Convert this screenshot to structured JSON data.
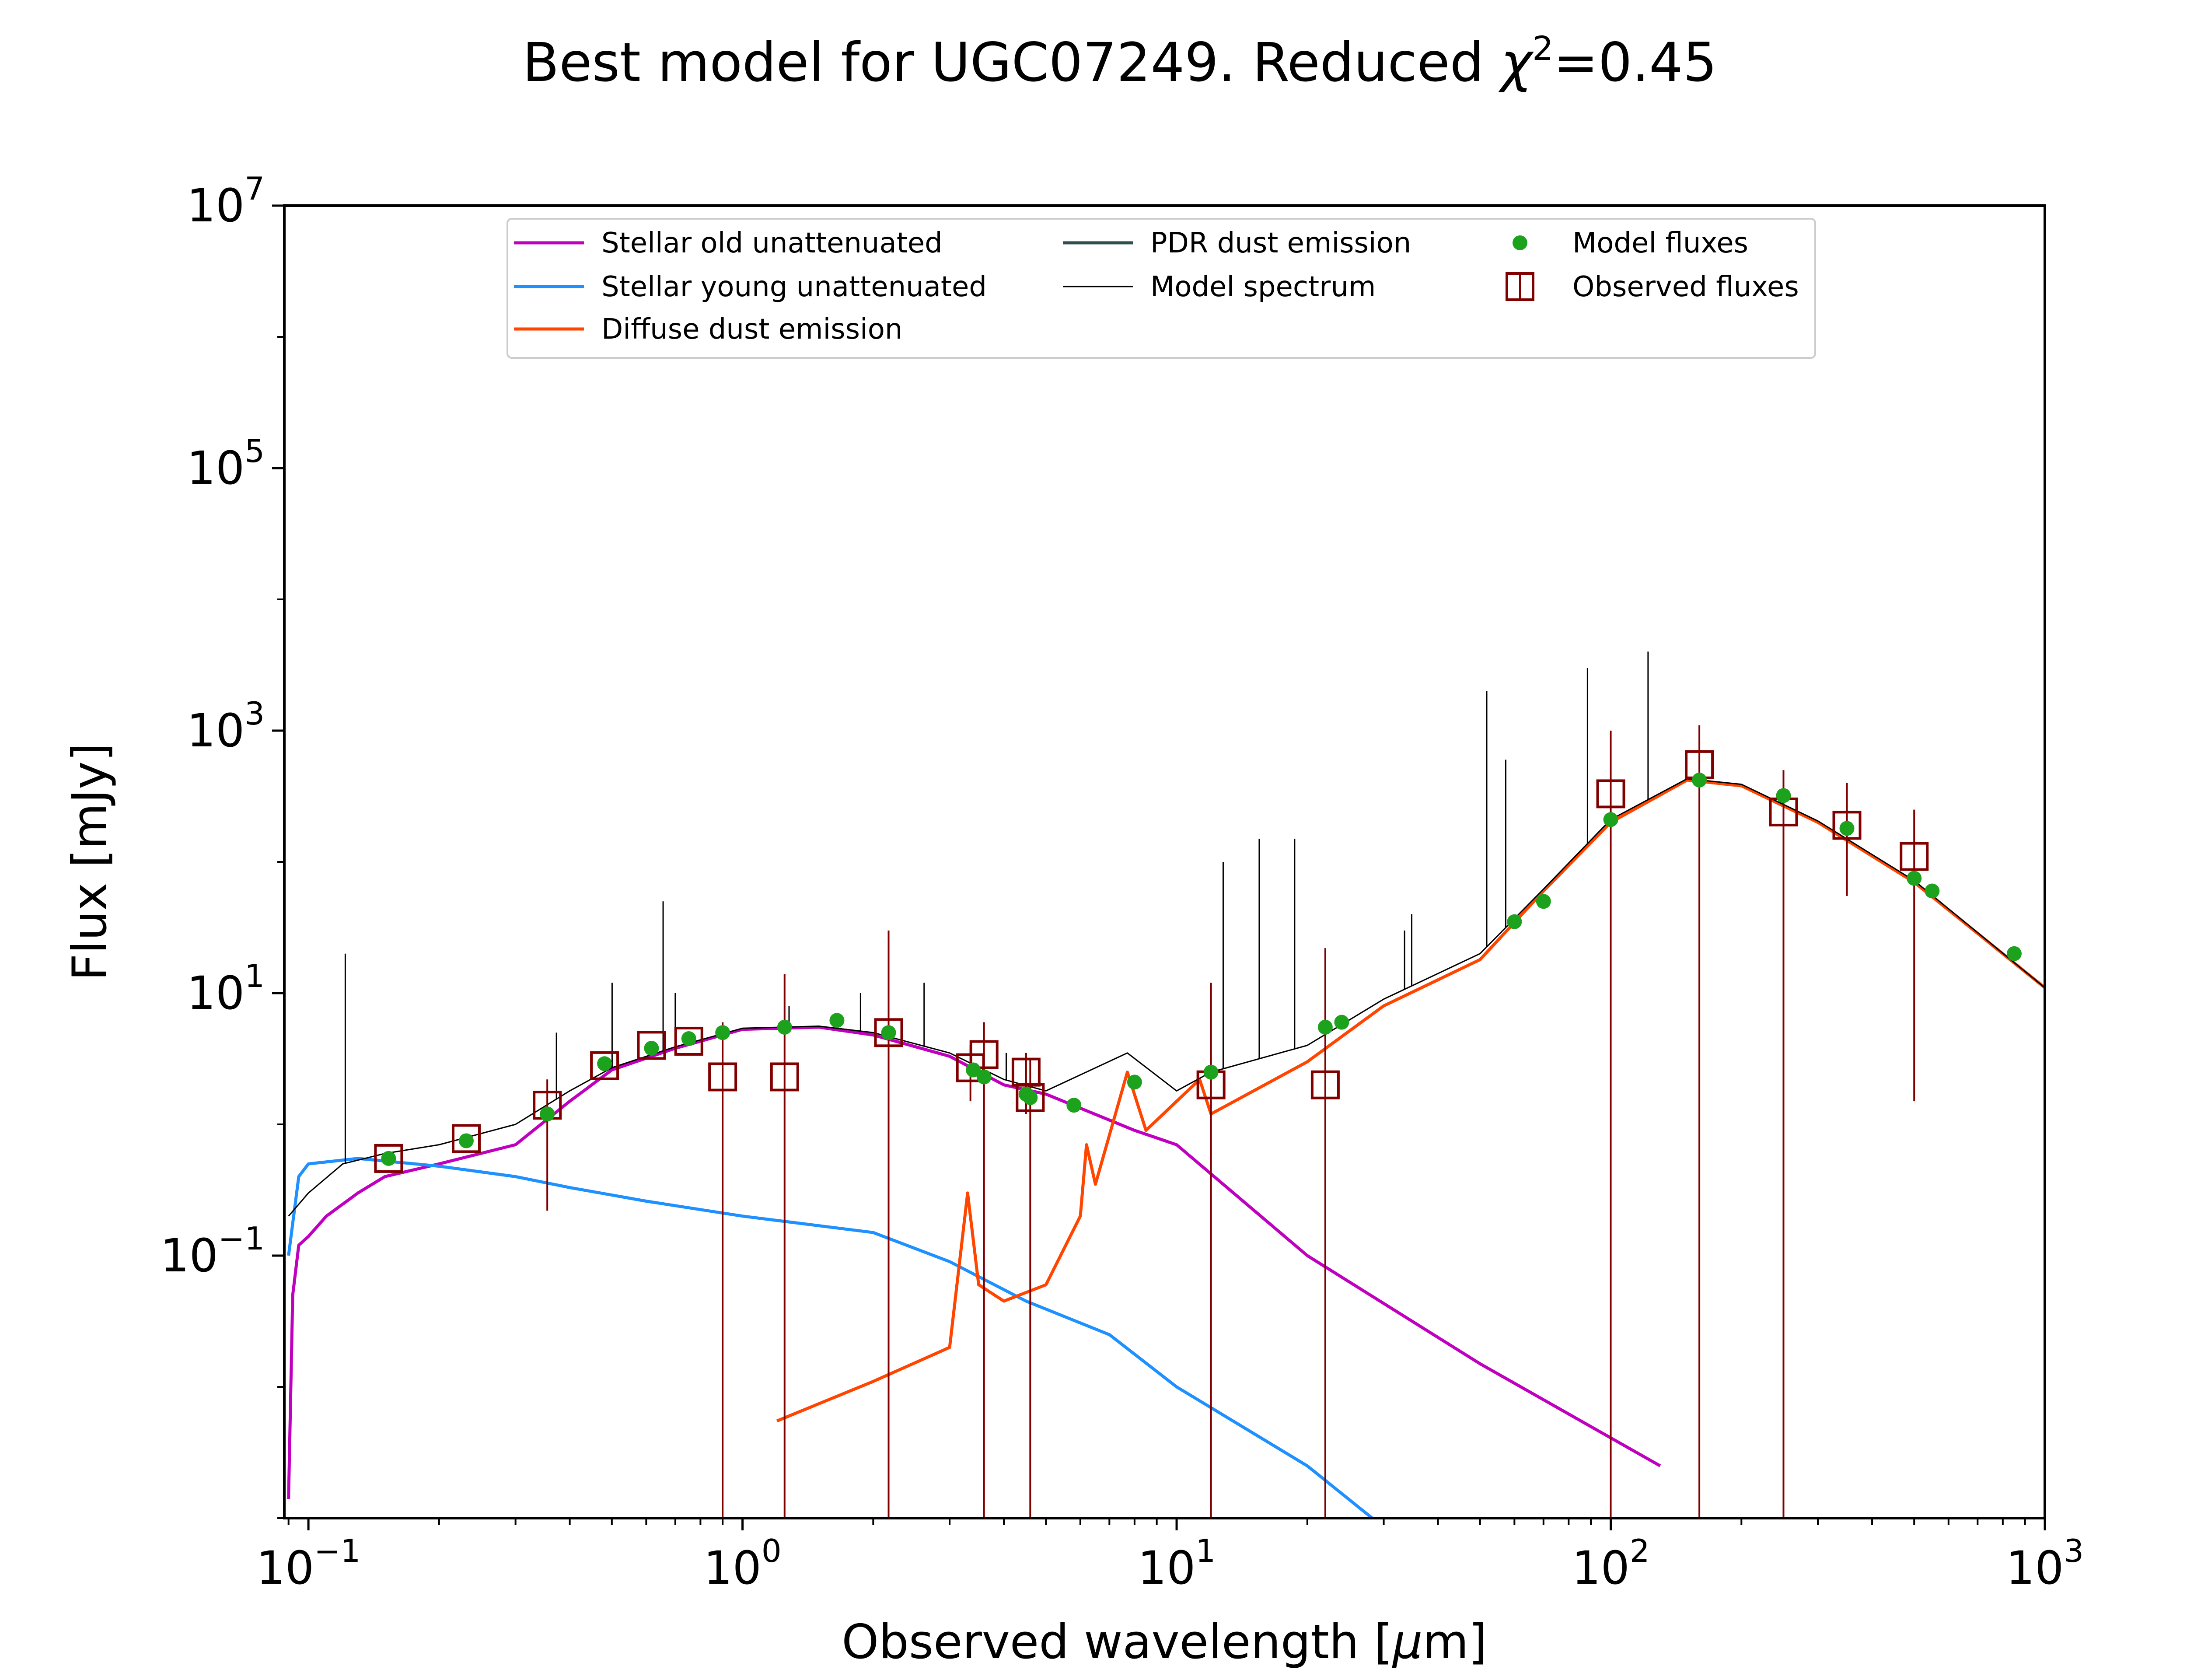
{
  "chart_data": {
    "type": "line",
    "title": "Best model for UGC07249. Reduced χ²=0.45",
    "title_parts": {
      "prefix": "Best model for UGC07249. Reduced ",
      "chi": "χ",
      "sup": "2",
      "suffix": "=0.45"
    },
    "xlabel": "Observed wavelength [μm]",
    "xlabel_parts": {
      "prefix": "Observed wavelength [",
      "mu": "μ",
      "suffix": "m]"
    },
    "ylabel": "Flux [mJy]",
    "xscale": "log",
    "yscale": "log",
    "xlim": [
      0.088,
      1000
    ],
    "ylim": [
      0.001,
      10000000
    ],
    "xticks": [
      {
        "base": "10",
        "exp": "−1",
        "value": 0.1
      },
      {
        "base": "10",
        "exp": "0",
        "value": 1
      },
      {
        "base": "10",
        "exp": "1",
        "value": 10
      },
      {
        "base": "10",
        "exp": "2",
        "value": 100
      },
      {
        "base": "10",
        "exp": "3",
        "value": 1000
      }
    ],
    "yticks": [
      {
        "base": "10",
        "exp": "−1",
        "value": 0.1
      },
      {
        "base": "10",
        "exp": "1",
        "value": 10
      },
      {
        "base": "10",
        "exp": "3",
        "value": 1000
      },
      {
        "base": "10",
        "exp": "5",
        "value": 100000
      },
      {
        "base": "10",
        "exp": "7",
        "value": 10000000
      }
    ],
    "grid": false,
    "legend_position": "top-center",
    "legend": [
      {
        "label": "Stellar old unattenuated",
        "color": "#bf00bf",
        "kind": "line"
      },
      {
        "label": "Stellar young unattenuated",
        "color": "#1e90ff",
        "kind": "line"
      },
      {
        "label": "Diffuse dust emission",
        "color": "#ff4500",
        "kind": "line"
      },
      {
        "label": "PDR dust emission",
        "color": "#2f4f4f",
        "kind": "line"
      },
      {
        "label": "Model spectrum",
        "color": "#000000",
        "kind": "thinline"
      },
      {
        "label": "Model fluxes",
        "color": "#1ca21c",
        "kind": "dot"
      },
      {
        "label": "Observed fluxes",
        "color": "#800000",
        "kind": "square"
      }
    ],
    "series": [
      {
        "name": "Stellar old unattenuated",
        "color": "#bf00bf",
        "points": [
          [
            0.09,
            0.0014
          ],
          [
            0.092,
            0.05
          ],
          [
            0.095,
            0.12
          ],
          [
            0.1,
            0.14
          ],
          [
            0.11,
            0.2
          ],
          [
            0.13,
            0.3
          ],
          [
            0.15,
            0.4
          ],
          [
            0.2,
            0.5
          ],
          [
            0.3,
            0.7
          ],
          [
            0.4,
            1.5
          ],
          [
            0.5,
            2.6
          ],
          [
            0.7,
            3.8
          ],
          [
            1.0,
            5.3
          ],
          [
            1.5,
            5.5
          ],
          [
            2.0,
            4.8
          ],
          [
            3.0,
            3.3
          ],
          [
            4.0,
            2.0
          ],
          [
            5.0,
            1.7
          ],
          [
            8.0,
            0.9
          ],
          [
            10.0,
            0.7
          ],
          [
            20.0,
            0.1
          ],
          [
            50.0,
            0.015
          ],
          [
            130.0,
            0.0025
          ]
        ]
      },
      {
        "name": "Stellar young unattenuated",
        "color": "#1e90ff",
        "points": [
          [
            0.09,
            0.1
          ],
          [
            0.095,
            0.4
          ],
          [
            0.1,
            0.5
          ],
          [
            0.13,
            0.55
          ],
          [
            0.2,
            0.48
          ],
          [
            0.3,
            0.4
          ],
          [
            0.4,
            0.33
          ],
          [
            0.6,
            0.26
          ],
          [
            1.0,
            0.2
          ],
          [
            2.0,
            0.15
          ],
          [
            3.0,
            0.09
          ],
          [
            4.5,
            0.045
          ],
          [
            7.0,
            0.025
          ],
          [
            10.0,
            0.01
          ],
          [
            20.0,
            0.0025
          ],
          [
            30.0,
            0.00085
          ]
        ]
      },
      {
        "name": "Diffuse dust emission",
        "color": "#ff4500",
        "points": [
          [
            1.2,
            0.0055
          ],
          [
            2.0,
            0.011
          ],
          [
            3.0,
            0.02
          ],
          [
            3.3,
            0.3
          ],
          [
            3.5,
            0.06
          ],
          [
            4.0,
            0.045
          ],
          [
            5.0,
            0.06
          ],
          [
            6.0,
            0.2
          ],
          [
            6.2,
            0.7
          ],
          [
            6.5,
            0.35
          ],
          [
            7.7,
            2.5
          ],
          [
            8.5,
            0.9
          ],
          [
            11.3,
            2.2
          ],
          [
            12.0,
            1.2
          ],
          [
            20.0,
            3.0
          ],
          [
            30.0,
            8.0
          ],
          [
            50.0,
            18.0
          ],
          [
            70.0,
            60.0
          ],
          [
            100.0,
            200.0
          ],
          [
            150.0,
            420.0
          ],
          [
            200.0,
            380.0
          ],
          [
            300.0,
            200.0
          ],
          [
            500.0,
            70.0
          ],
          [
            1000.0,
            11.0
          ]
        ]
      },
      {
        "name": "Model spectrum",
        "color": "#000000",
        "points": [
          [
            0.09,
            0.2
          ],
          [
            0.1,
            0.3
          ],
          [
            0.12,
            0.5
          ],
          [
            0.15,
            0.6
          ],
          [
            0.2,
            0.7
          ],
          [
            0.3,
            1.0
          ],
          [
            0.4,
            1.8
          ],
          [
            0.5,
            2.7
          ],
          [
            0.7,
            3.9
          ],
          [
            1.0,
            5.4
          ],
          [
            1.5,
            5.6
          ],
          [
            2.0,
            5.0
          ],
          [
            3.0,
            3.5
          ],
          [
            4.0,
            2.2
          ],
          [
            5.0,
            1.8
          ],
          [
            7.7,
            3.5
          ],
          [
            10.0,
            1.8
          ],
          [
            12.0,
            2.5
          ],
          [
            20.0,
            4.0
          ],
          [
            30.0,
            9.0
          ],
          [
            50.0,
            20.0
          ],
          [
            70.0,
            62.0
          ],
          [
            100.0,
            210.0
          ],
          [
            150.0,
            430.0
          ],
          [
            200.0,
            390.0
          ],
          [
            300.0,
            205.0
          ],
          [
            500.0,
            72.0
          ],
          [
            1000.0,
            11.0
          ]
        ]
      }
    ],
    "spectral_lines": [
      [
        0.1216,
        20
      ],
      [
        0.3727,
        5
      ],
      [
        0.5007,
        12
      ],
      [
        0.6563,
        50
      ],
      [
        0.7,
        10
      ],
      [
        1.28,
        8
      ],
      [
        1.87,
        10
      ],
      [
        2.62,
        12
      ],
      [
        4.05,
        3.5
      ],
      [
        12.8,
        100
      ],
      [
        15.5,
        150
      ],
      [
        18.7,
        150
      ],
      [
        33.5,
        30
      ],
      [
        34.8,
        40
      ],
      [
        51.8,
        2000
      ],
      [
        57.3,
        600
      ],
      [
        88.4,
        3000
      ],
      [
        121.9,
        4000
      ]
    ],
    "model_fluxes": [
      [
        0.153,
        0.55
      ],
      [
        0.231,
        0.75
      ],
      [
        0.355,
        1.2
      ],
      [
        0.481,
        2.9
      ],
      [
        0.617,
        3.8
      ],
      [
        0.752,
        4.5
      ],
      [
        0.9,
        5.0
      ],
      [
        1.25,
        5.5
      ],
      [
        1.65,
        6.2
      ],
      [
        2.17,
        5.0
      ],
      [
        3.4,
        2.6
      ],
      [
        3.6,
        2.3
      ],
      [
        4.5,
        1.7
      ],
      [
        4.6,
        1.6
      ],
      [
        5.8,
        1.4
      ],
      [
        8.0,
        2.1
      ],
      [
        12.0,
        2.5
      ],
      [
        22.0,
        5.5
      ],
      [
        24.0,
        6.0
      ],
      [
        60.0,
        35.0
      ],
      [
        70.0,
        50.0
      ],
      [
        100.0,
        210.0
      ],
      [
        160.0,
        420.0
      ],
      [
        250.0,
        320.0
      ],
      [
        350.0,
        180.0
      ],
      [
        500.0,
        75.0
      ],
      [
        550.0,
        60.0
      ],
      [
        850.0,
        20.0
      ]
    ],
    "observed_fluxes": [
      {
        "x": 0.153,
        "y": 0.55,
        "ylo": 0.52,
        "yhi": 0.58
      },
      {
        "x": 0.231,
        "y": 0.78,
        "ylo": 0.74,
        "yhi": 0.82
      },
      {
        "x": 0.355,
        "y": 1.4,
        "ylo": 0.22,
        "yhi": 2.2
      },
      {
        "x": 0.481,
        "y": 2.8,
        "ylo": 2.6,
        "yhi": 3.0
      },
      {
        "x": 0.617,
        "y": 4.0,
        "ylo": 3.7,
        "yhi": 4.3
      },
      {
        "x": 0.752,
        "y": 4.3,
        "ylo": 4.0,
        "yhi": 4.6
      },
      {
        "x": 0.9,
        "y": 2.3,
        "ylo": 0.001,
        "yhi": 6.0
      },
      {
        "x": 1.25,
        "y": 2.3,
        "ylo": 0.001,
        "yhi": 14.0
      },
      {
        "x": 2.17,
        "y": 5.0,
        "ylo": 0.001,
        "yhi": 30.0
      },
      {
        "x": 3.35,
        "y": 2.7,
        "ylo": 1.5,
        "yhi": 4.0
      },
      {
        "x": 3.6,
        "y": 3.4,
        "ylo": 0.001,
        "yhi": 6.0
      },
      {
        "x": 4.5,
        "y": 2.5,
        "ylo": 1.2,
        "yhi": 3.5
      },
      {
        "x": 4.6,
        "y": 1.6,
        "ylo": 0.001,
        "yhi": 3.2
      },
      {
        "x": 12.0,
        "y": 2.0,
        "ylo": 0.001,
        "yhi": 12.0
      },
      {
        "x": 22.0,
        "y": 2.0,
        "ylo": 0.001,
        "yhi": 22.0
      },
      {
        "x": 100.0,
        "y": 330.0,
        "ylo": 0.001,
        "yhi": 1000.0
      },
      {
        "x": 160.0,
        "y": 550.0,
        "ylo": 0.001,
        "yhi": 1100.0
      },
      {
        "x": 250.0,
        "y": 240.0,
        "ylo": 0.001,
        "yhi": 500.0
      },
      {
        "x": 350.0,
        "y": 190.0,
        "ylo": 55.0,
        "yhi": 400.0
      },
      {
        "x": 500.0,
        "y": 110.0,
        "ylo": 1.5,
        "yhi": 250.0
      }
    ]
  }
}
